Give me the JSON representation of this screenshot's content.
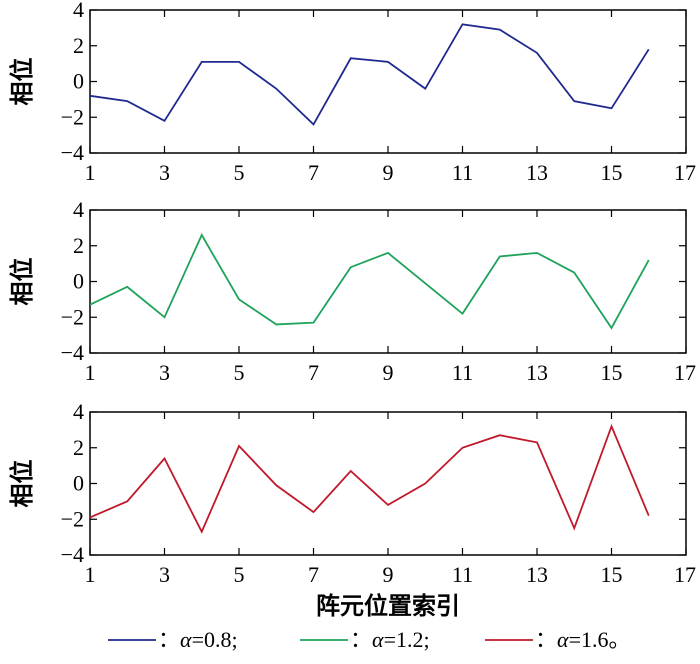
{
  "chart_data": [
    {
      "type": "line",
      "ylabel": "相位",
      "xlim": [
        1,
        17
      ],
      "ylim": [
        -4,
        4
      ],
      "xticks": [
        1,
        3,
        5,
        7,
        9,
        11,
        13,
        15,
        17
      ],
      "yticks": [
        4,
        2,
        0,
        -2,
        -4
      ],
      "color": "#1f2a8f",
      "x": [
        1,
        2,
        3,
        4,
        5,
        6,
        7,
        8,
        9,
        10,
        11,
        12,
        13,
        14,
        15,
        16
      ],
      "values": [
        -0.8,
        -1.1,
        -2.2,
        1.1,
        1.1,
        -0.4,
        -2.4,
        1.3,
        1.1,
        -0.4,
        3.2,
        2.9,
        1.6,
        -1.1,
        -1.5,
        1.8
      ]
    },
    {
      "type": "line",
      "ylabel": "相位",
      "xlim": [
        1,
        17
      ],
      "ylim": [
        -4,
        4
      ],
      "xticks": [
        1,
        3,
        5,
        7,
        9,
        11,
        13,
        15,
        17
      ],
      "yticks": [
        4,
        2,
        0,
        -2,
        -4
      ],
      "color": "#1fa35a",
      "x": [
        1,
        2,
        3,
        4,
        5,
        6,
        7,
        8,
        9,
        10,
        11,
        12,
        13,
        14,
        15,
        16
      ],
      "values": [
        -1.3,
        -0.3,
        -2.0,
        2.6,
        -1.0,
        -2.4,
        -2.3,
        0.8,
        1.6,
        -0.1,
        -1.8,
        1.4,
        1.6,
        0.5,
        -2.6,
        1.2
      ]
    },
    {
      "type": "line",
      "ylabel": "相位",
      "xlabel": "阵元位置索引",
      "xlim": [
        1,
        17
      ],
      "ylim": [
        -4,
        4
      ],
      "xticks": [
        1,
        3,
        5,
        7,
        9,
        11,
        13,
        15,
        17
      ],
      "yticks": [
        4,
        2,
        0,
        -2,
        -4
      ],
      "color": "#c0192b",
      "x": [
        1,
        2,
        3,
        4,
        5,
        6,
        7,
        8,
        9,
        10,
        11,
        12,
        13,
        14,
        15,
        16
      ],
      "values": [
        -1.9,
        -1.0,
        1.4,
        -2.7,
        2.1,
        -0.1,
        -1.6,
        0.7,
        -1.2,
        0.0,
        2.0,
        2.7,
        2.3,
        -2.5,
        3.2,
        -1.8
      ]
    }
  ],
  "legend": {
    "placement": "bottom",
    "entries": [
      {
        "prefix": "：",
        "alpha": "α",
        "suffix": "=0.8;",
        "color": "#1f2a8f"
      },
      {
        "prefix": "：",
        "alpha": "α",
        "suffix": "=1.2;",
        "color": "#1fa35a"
      },
      {
        "prefix": "：",
        "alpha": "α",
        "suffix": "=1.6。",
        "color": "#c0192b"
      }
    ]
  }
}
